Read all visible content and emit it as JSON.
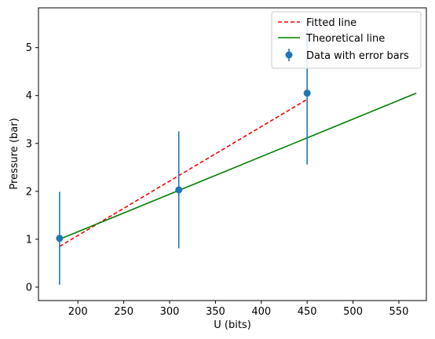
{
  "chart_data": {
    "type": "scatter",
    "title": "",
    "xlabel": "U (bits)",
    "ylabel": "Pressure (bar)",
    "xlim": [
      157,
      580
    ],
    "ylim": [
      -0.28,
      5.83
    ],
    "xticks": [
      200,
      250,
      300,
      350,
      400,
      450,
      500,
      550
    ],
    "yticks": [
      0,
      1,
      2,
      3,
      4,
      5
    ],
    "grid": false,
    "legend_position": "top-right",
    "series": [
      {
        "name": "Fitted line",
        "kind": "line",
        "style": "dashed",
        "color": "#ff0000",
        "x": [
          180,
          450
        ],
        "y": [
          0.85,
          3.92
        ]
      },
      {
        "name": "Theoretical line",
        "kind": "line",
        "style": "solid",
        "color": "#008000",
        "x": [
          180,
          569
        ],
        "y": [
          1.0,
          4.05
        ]
      },
      {
        "name": "Data with error bars",
        "kind": "errorbar",
        "color": "#1f77b4",
        "x": [
          180,
          310,
          450
        ],
        "y": [
          1.02,
          2.03,
          4.05
        ],
        "yerr": [
          0.97,
          1.22,
          1.49
        ]
      }
    ]
  }
}
